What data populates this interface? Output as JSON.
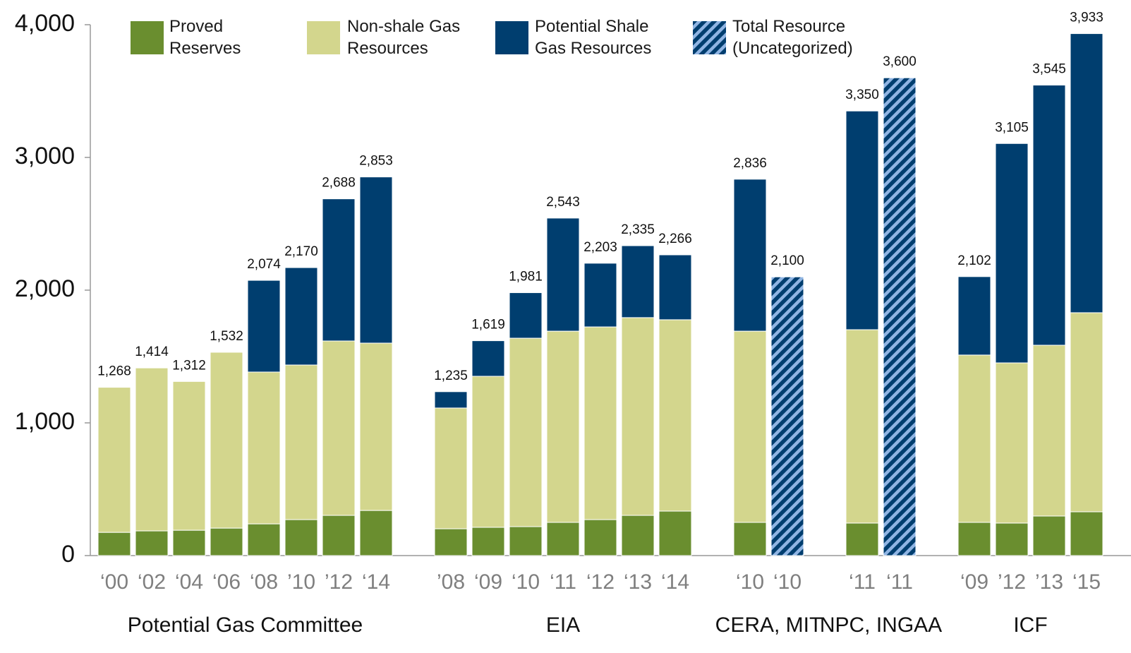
{
  "chart_data": {
    "type": "bar",
    "stacked": true,
    "groups": [
      {
        "label": "Potential Gas Committee",
        "categories": [
          "‘00",
          "‘02",
          "‘04",
          "‘06",
          "‘08",
          "’10",
          "’12",
          "‘14"
        ]
      },
      {
        "label": "EIA",
        "categories": [
          "’08",
          "‘09",
          "‘10",
          "‘11",
          "‘12",
          "‘13",
          "‘14"
        ]
      },
      {
        "label": "CERA, MIT",
        "categories": [
          "‘10",
          "‘10"
        ]
      },
      {
        "label": "NPC, INGAA",
        "categories": [
          "‘11",
          "‘11"
        ]
      },
      {
        "label": "ICF",
        "categories": [
          "‘09",
          "’12",
          "’13",
          "‘15"
        ]
      }
    ],
    "series": [
      {
        "name": "Proved Reserves",
        "color": "#6a8e2f",
        "values": [
          175,
          186,
          191,
          207,
          239,
          271,
          303,
          340,
          202,
          213,
          218,
          250,
          271,
          303,
          335,
          250,
          null,
          245,
          null,
          250,
          245,
          298,
          330
        ]
      },
      {
        "name": "Non-shale Gas Resources",
        "color": "#d3d68d",
        "values": [
          1093,
          1228,
          1121,
          1325,
          1144,
          1165,
          1314,
          1261,
          910,
          1138,
          1420,
          1441,
          1452,
          1490,
          1442,
          1441,
          null,
          1457,
          null,
          1261,
          1207,
          1287,
          1500
        ]
      },
      {
        "name": "Potential Shale Gas Resources",
        "color": "#003e6f",
        "values": [
          null,
          null,
          null,
          null,
          691,
          734,
          1071,
          1252,
          123,
          268,
          343,
          852,
          480,
          542,
          489,
          1145,
          null,
          1648,
          null,
          591,
          1653,
          1960,
          2103
        ]
      },
      {
        "name": "Total Resource (Uncategorized)",
        "color": "#003e6f",
        "hatch_color": "#8fb4e3",
        "hatched": true,
        "values": [
          null,
          null,
          null,
          null,
          null,
          null,
          null,
          null,
          null,
          null,
          null,
          null,
          null,
          null,
          null,
          null,
          2100,
          null,
          3600,
          null,
          null,
          null,
          null
        ]
      }
    ],
    "totals": [
      1268,
      1414,
      1312,
      1532,
      2074,
      2170,
      2688,
      2853,
      1235,
      1619,
      1981,
      2543,
      2203,
      2335,
      2266,
      2836,
      2100,
      3350,
      3600,
      2102,
      3105,
      3545,
      3933
    ],
    "total_labels": [
      "1,268",
      "1,414",
      "1,312",
      "1,532",
      "2,074",
      "2,170",
      "2,688",
      "2,853",
      "1,235",
      "1,619",
      "1,981",
      "2,543",
      "2,203",
      "2,335",
      "2,266",
      "2,836",
      "2,100",
      "3,350",
      "3,600",
      "2,102",
      "3,105",
      "3,545",
      "3,933"
    ],
    "ylim": [
      0,
      4000
    ],
    "yticks": [
      0,
      {
        "value": 1000,
        "label": "1,000"
      },
      {
        "value": 2000,
        "label": "2,000"
      },
      {
        "value": 3000,
        "label": "3,000"
      },
      {
        "value": 4000,
        "label": "4,000"
      }
    ],
    "grid": false
  }
}
